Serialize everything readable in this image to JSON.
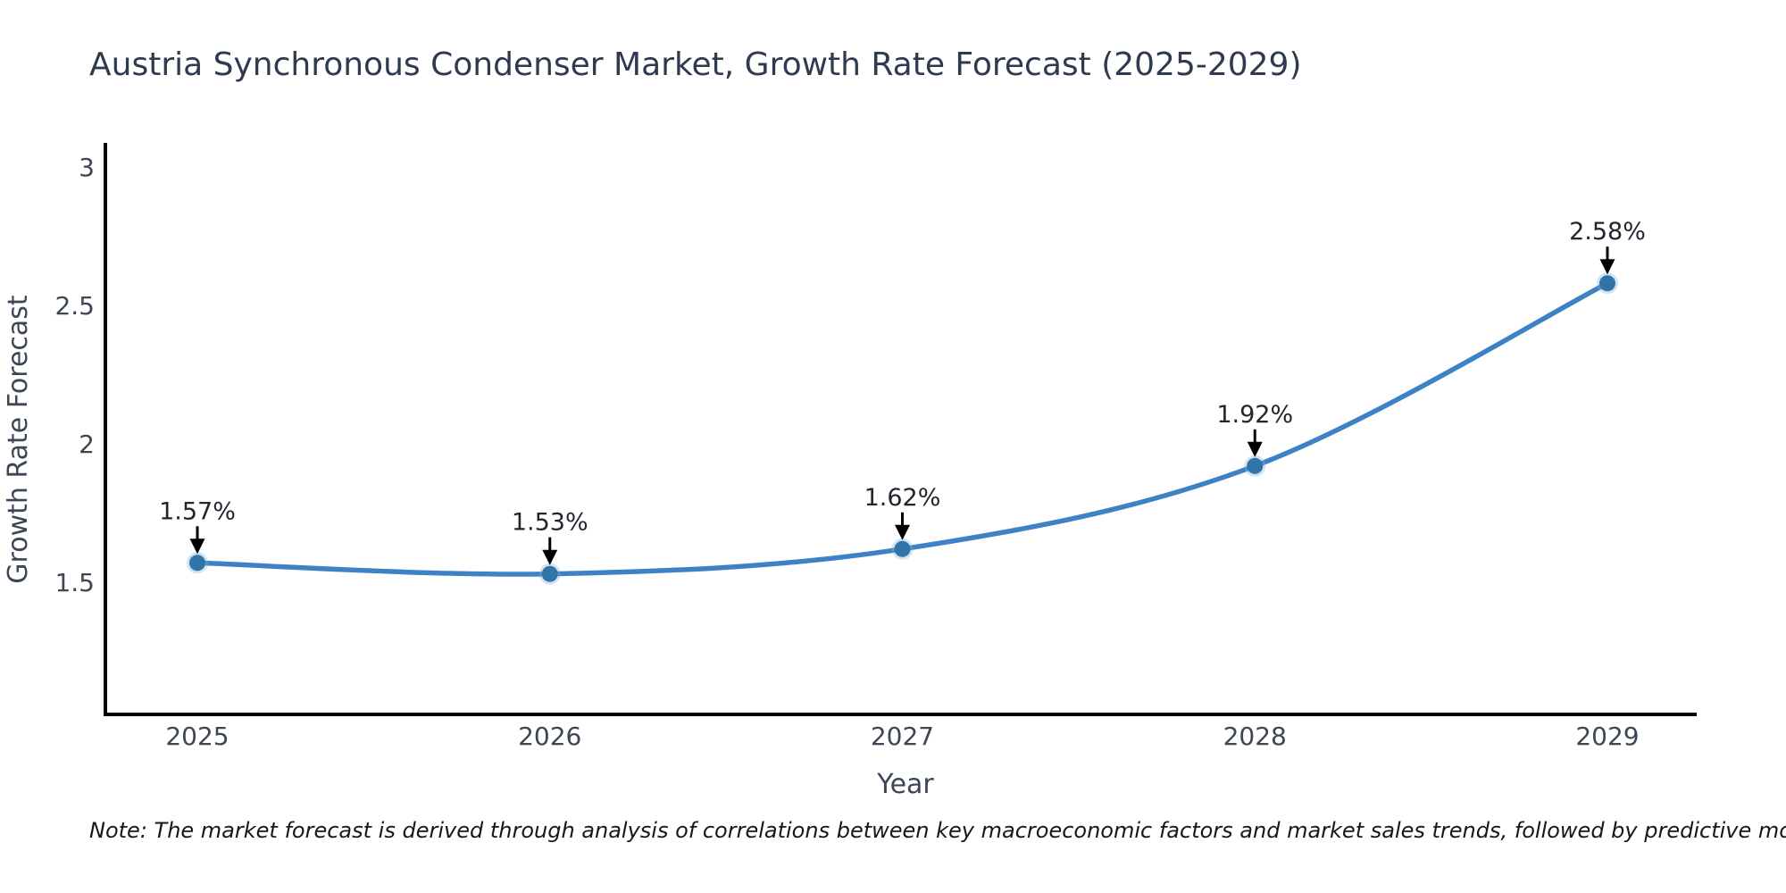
{
  "chart_data": {
    "type": "line",
    "title": "Austria Synchronous Condenser Market, Growth Rate Forecast (2025-2029)",
    "xlabel": "Year",
    "ylabel": "Growth Rate Forecast",
    "categories": [
      "2025",
      "2026",
      "2027",
      "2028",
      "2029"
    ],
    "series": [
      {
        "name": "Growth Rate Forecast (%)",
        "values": [
          1.57,
          1.53,
          1.62,
          1.92,
          2.58
        ],
        "point_labels": [
          "1.57%",
          "1.53%",
          "1.62%",
          "1.92%",
          "2.58%"
        ]
      }
    ],
    "yticks": [
      1.5,
      2,
      2.5,
      3
    ],
    "ytick_labels": [
      "1.5",
      "2",
      "2.5",
      "3"
    ],
    "ylim": [
      1.02,
      3.08
    ],
    "grid": false,
    "legend_position": "none",
    "annotations": "black arrows pointing from each percentage label down to its data point"
  },
  "footnote": "Note: The market forecast is derived through analysis of correlations between key macroeconomic factors and market sales trends, followed by predictive modeling to project future sales",
  "colors": {
    "line": "#3d82c4",
    "marker": "#3273a8",
    "marker_halo": "#7fb3dd",
    "title": "#2f3950",
    "tick_label": "#3d4654",
    "axis_label": "#3c4657",
    "point_label": "#20262e",
    "arrow": "#000000",
    "axis_line": "#000000",
    "background": "#ffffff"
  }
}
